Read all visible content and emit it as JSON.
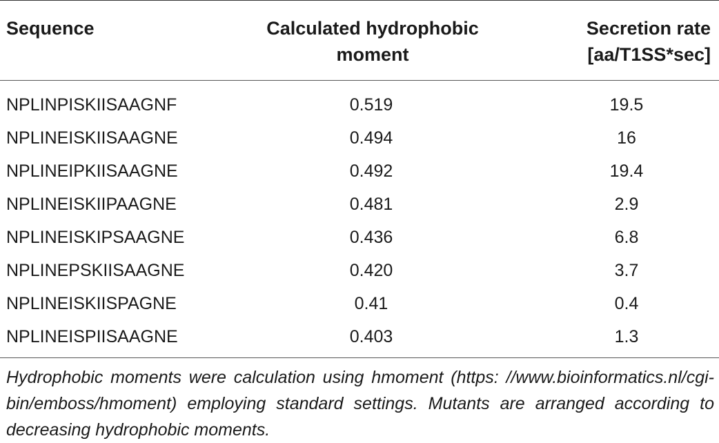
{
  "table": {
    "headers": {
      "sequence": "Sequence",
      "moment_line1": "Calculated hydrophobic",
      "moment_line2": "moment",
      "rate_line1": "Secretion rate",
      "rate_line2": "[aa/T1SS*sec]"
    },
    "rows": [
      {
        "sequence": "NPLINPISKIISAAGNF",
        "moment": "0.519",
        "rate": "19.5"
      },
      {
        "sequence": "NPLINEISKIISAAGNE",
        "moment": "0.494",
        "rate": "16"
      },
      {
        "sequence": "NPLINEIPKIISAAGNE",
        "moment": "0.492",
        "rate": "19.4"
      },
      {
        "sequence": "NPLINEISKIIPAAGNE",
        "moment": "0.481",
        "rate": "2.9"
      },
      {
        "sequence": "NPLINEISKIPSAAGNE",
        "moment": "0.436",
        "rate": "6.8"
      },
      {
        "sequence": "NPLINEPSKIISAAGNE",
        "moment": "0.420",
        "rate": "3.7"
      },
      {
        "sequence": "NPLINEISKIISPAGNE",
        "moment": "0.41",
        "rate": "0.4"
      },
      {
        "sequence": "NPLINEISPIISAAGNE",
        "moment": "0.403",
        "rate": "1.3"
      }
    ]
  },
  "footnote": "Hydrophobic moments were calculation using hmoment (https: //www.bioinformatics.nl/cgi-bin/emboss/hmoment) employing standard settings. Mutants are arranged according to decreasing hydrophobic moments."
}
